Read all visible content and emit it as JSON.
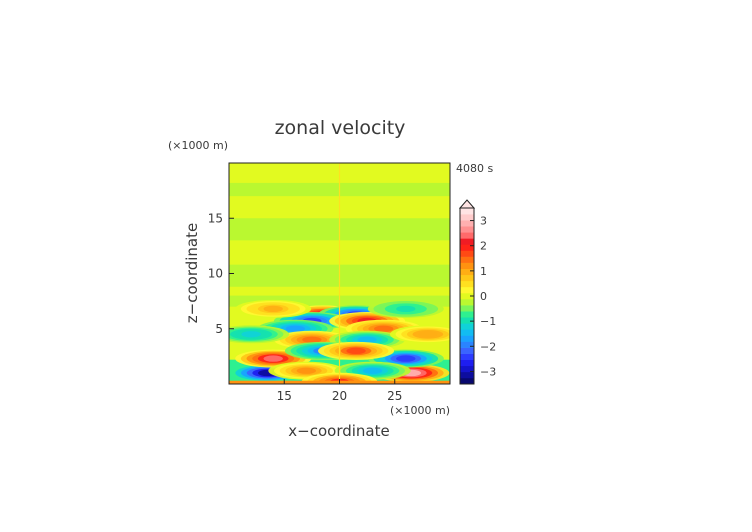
{
  "chart_data": {
    "type": "heatmap",
    "title": "zonal velocity",
    "xlabel": "x−coordinate",
    "ylabel": "z−coordinate",
    "x_unit": "(×1000 m)",
    "y_unit": "(×1000 m)",
    "time_label": "4080 s",
    "xlim": [
      10,
      30
    ],
    "ylim": [
      0,
      20
    ],
    "x_ticks": [
      "15",
      "20",
      "25"
    ],
    "y_ticks": [
      "5",
      "10",
      "15"
    ],
    "x_tick_values": [
      15,
      20,
      25
    ],
    "y_tick_values": [
      5,
      10,
      15
    ],
    "colorbar": {
      "levels": [
        -3.5,
        -3.25,
        -3.0,
        -2.75,
        -2.5,
        -2.25,
        -2.0,
        -1.75,
        -1.5,
        -1.25,
        -1.0,
        -0.75,
        -0.5,
        -0.25,
        0.0,
        0.25,
        0.5,
        0.75,
        1.0,
        1.25,
        1.5,
        1.75,
        2.0,
        2.25,
        2.5,
        2.75,
        3.0,
        3.25,
        3.5
      ],
      "tick_labels": [
        "−3",
        "−2",
        "−1",
        "0",
        "1",
        "2",
        "3"
      ],
      "tick_values": [
        -3,
        -2,
        -1,
        0,
        1,
        2,
        3
      ],
      "extend": "max",
      "colors": [
        "#08086e",
        "#0d0d9e",
        "#1414cc",
        "#1e1ef0",
        "#2c3cff",
        "#3a64ff",
        "#2a84ff",
        "#1aa2ff",
        "#12bcf2",
        "#10d2d8",
        "#14e0b0",
        "#2ef090",
        "#7af55a",
        "#baf830",
        "#e2fa20",
        "#fff830",
        "#ffe020",
        "#ffc818",
        "#ffae14",
        "#ff9210",
        "#ff7010",
        "#ff4a14",
        "#ff2418",
        "#f01c24",
        "#ff6a6a",
        "#ff9090",
        "#ffb0b0",
        "#ffcccc",
        "#ffe4e4"
      ]
    },
    "features": [
      {
        "x": 13.5,
        "z": 1.0,
        "value": -3.2
      },
      {
        "x": 26.5,
        "z": 1.0,
        "value": 3.1
      },
      {
        "x": 14.0,
        "z": 2.3,
        "value": 2.5
      },
      {
        "x": 26.0,
        "z": 2.3,
        "value": -2.5
      },
      {
        "x": 18.5,
        "z": 6.3,
        "value": 2.3
      },
      {
        "x": 21.5,
        "z": 6.3,
        "value": -2.3
      },
      {
        "x": 17.5,
        "z": 5.7,
        "value": -2.4
      },
      {
        "x": 22.5,
        "z": 5.7,
        "value": 2.3
      },
      {
        "x": 16.0,
        "z": 5.0,
        "value": -1.6
      },
      {
        "x": 24.0,
        "z": 5.0,
        "value": 1.6
      },
      {
        "x": 17.5,
        "z": 4.0,
        "value": 1.5
      },
      {
        "x": 22.5,
        "z": 4.0,
        "value": -1.5
      },
      {
        "x": 18.5,
        "z": 3.0,
        "value": -1.8
      },
      {
        "x": 21.5,
        "z": 3.0,
        "value": 1.8
      },
      {
        "x": 12.0,
        "z": 4.5,
        "value": -1.2
      },
      {
        "x": 28.0,
        "z": 4.5,
        "value": 1.2
      },
      {
        "x": 14.0,
        "z": 6.8,
        "value": 1.0
      },
      {
        "x": 26.0,
        "z": 6.8,
        "value": -0.9
      },
      {
        "x": 17.0,
        "z": 1.2,
        "value": 1.3
      },
      {
        "x": 23.0,
        "z": 1.2,
        "value": -1.3
      },
      {
        "x": 20.0,
        "z": 0.2,
        "value": 2.0
      }
    ]
  }
}
